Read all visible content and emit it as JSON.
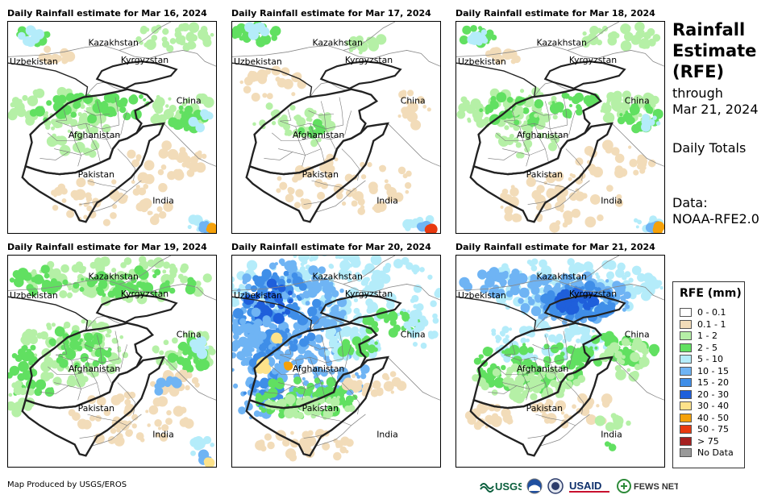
{
  "panels": [
    {
      "title": "Daily Rainfall estimate for Mar 16, 2024",
      "intensity": "light-scattered"
    },
    {
      "title": "Daily Rainfall estimate for Mar 17, 2024",
      "intensity": "very-light"
    },
    {
      "title": "Daily Rainfall estimate for Mar 18, 2024",
      "intensity": "light-scattered"
    },
    {
      "title": "Daily Rainfall estimate for Mar 19, 2024",
      "intensity": "moderate"
    },
    {
      "title": "Daily Rainfall estimate for Mar 20, 2024",
      "intensity": "heavy-west"
    },
    {
      "title": "Daily Rainfall estimate for Mar 21, 2024",
      "intensity": "heavy-north"
    }
  ],
  "countries": {
    "kazakhstan": "Kazakhstan",
    "uzbekistan": "Uzbekistan",
    "kyrgyzstan": "Kyrgyzstan",
    "china": "China",
    "afghanistan": "Afghanistan",
    "pakistan": "Pakistan",
    "india": "India"
  },
  "sidebar": {
    "title_line1": "Rainfall",
    "title_line2": "Estimate",
    "title_line3": "(RFE)",
    "through_label": "through",
    "through_date": "Mar 21, 2024",
    "totals_label": "Daily Totals",
    "data_label": "Data:",
    "data_source": "NOAA-RFE2.0"
  },
  "legend": {
    "title": "RFE (mm)",
    "items": [
      {
        "label": "0 - 0.1",
        "color": "#ffffff"
      },
      {
        "label": "0.1 - 1",
        "color": "#f2dcb9"
      },
      {
        "label": "1 - 2",
        "color": "#b5f0a6"
      },
      {
        "label": "2 - 5",
        "color": "#61e061"
      },
      {
        "label": "5 - 10",
        "color": "#b4ecfa"
      },
      {
        "label": "10 - 15",
        "color": "#6fb4f4"
      },
      {
        "label": "15 - 20",
        "color": "#3f8ee8"
      },
      {
        "label": "20 - 30",
        "color": "#1f5fdb"
      },
      {
        "label": "30 - 40",
        "color": "#fde28a"
      },
      {
        "label": "40 - 50",
        "color": "#f5a10a"
      },
      {
        "label": "50 - 75",
        "color": "#e83a10"
      },
      {
        "label": "> 75",
        "color": "#a52020"
      },
      {
        "label": "No Data",
        "color": "#999999"
      }
    ]
  },
  "footer": {
    "credit": "Map Produced by USGS/EROS",
    "logos": [
      "USGS",
      "NOAA",
      "DOS",
      "USAID",
      "FEWS NET"
    ]
  }
}
